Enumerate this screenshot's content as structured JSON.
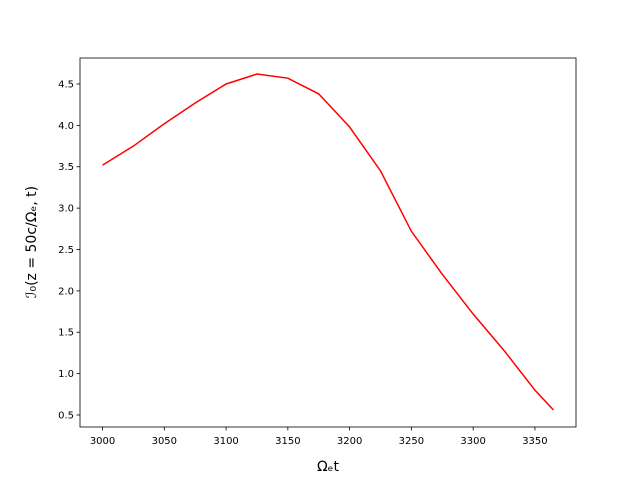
{
  "chart_data": {
    "type": "line",
    "x_label": "Ωₑt",
    "y_label": "ℐ₀(z = 50c/Ωₑ, t)",
    "x": [
      3000,
      3025,
      3050,
      3075,
      3100,
      3125,
      3150,
      3175,
      3200,
      3225,
      3250,
      3275,
      3300,
      3325,
      3350,
      3365
    ],
    "series": [
      {
        "color": "#ff0000",
        "values": [
          3.52,
          3.75,
          4.02,
          4.27,
          4.5,
          4.62,
          4.57,
          4.38,
          3.98,
          3.45,
          2.72,
          2.2,
          1.72,
          1.28,
          0.8,
          0.56
        ]
      }
    ],
    "xlim": [
      2981.75,
      3383.25
    ],
    "ylim": [
      0.355,
      4.814
    ],
    "xticks": [
      3000,
      3050,
      3100,
      3150,
      3200,
      3250,
      3300,
      3350
    ],
    "yticks": [
      0.5,
      {
        "value": 1,
        "label": "1.0"
      },
      1.5,
      {
        "value": 2,
        "label": "2.0"
      },
      2.5,
      {
        "value": 3,
        "label": "3.0"
      },
      3.5,
      {
        "value": 4,
        "label": "4.0"
      },
      4.5
    ]
  }
}
